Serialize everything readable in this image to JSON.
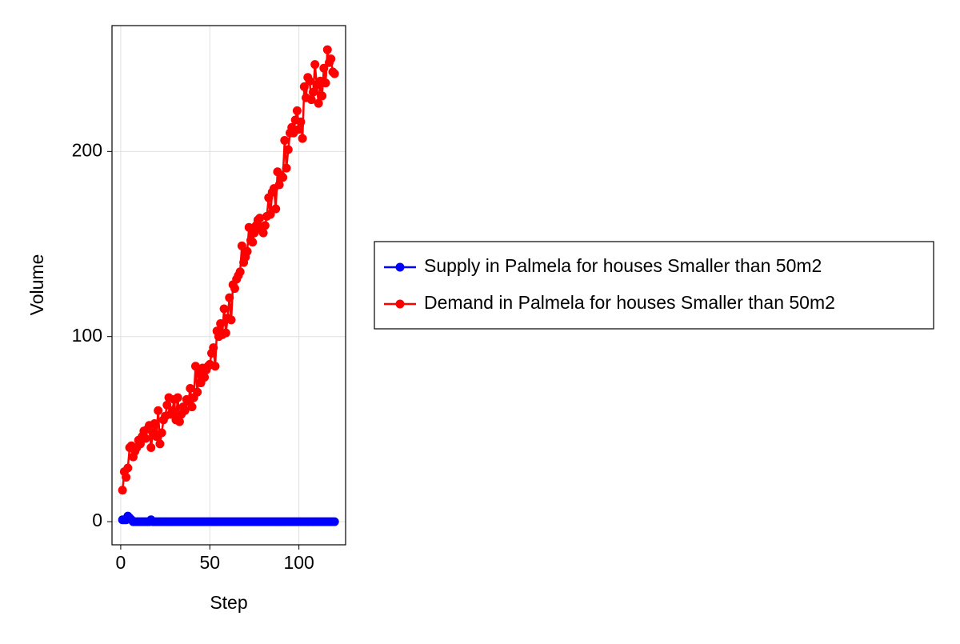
{
  "chart_data": {
    "type": "line",
    "x_label": "Step",
    "y_label": "Volume",
    "x": [
      1,
      2,
      3,
      4,
      5,
      6,
      7,
      8,
      9,
      10,
      11,
      12,
      13,
      14,
      15,
      16,
      17,
      18,
      19,
      20,
      21,
      22,
      23,
      24,
      25,
      26,
      27,
      28,
      29,
      30,
      31,
      32,
      33,
      34,
      35,
      36,
      37,
      38,
      39,
      40,
      41,
      42,
      43,
      44,
      45,
      46,
      47,
      48,
      49,
      50,
      51,
      52,
      53,
      54,
      55,
      56,
      57,
      58,
      59,
      60,
      61,
      62,
      63,
      64,
      65,
      66,
      67,
      68,
      69,
      70,
      71,
      72,
      73,
      74,
      75,
      76,
      77,
      78,
      79,
      80,
      81,
      82,
      83,
      84,
      85,
      86,
      87,
      88,
      89,
      90,
      91,
      92,
      93,
      94,
      95,
      96,
      97,
      98,
      99,
      100,
      101,
      102,
      103,
      104,
      105,
      106,
      107,
      108,
      109,
      110,
      111,
      112,
      113,
      114,
      115,
      116,
      117,
      118,
      119,
      120
    ],
    "series": [
      {
        "name": "Supply in Palmela for houses Smaller than 50m2",
        "color": "#0000ff",
        "values": [
          1,
          1,
          1,
          3,
          2,
          1,
          0,
          0,
          0,
          0,
          0,
          0,
          0,
          0,
          0,
          0,
          1,
          0,
          0,
          0,
          0,
          0,
          0,
          0,
          0,
          0,
          0,
          0,
          0,
          0,
          0,
          0,
          0,
          0,
          0,
          0,
          0,
          0,
          0,
          0,
          0,
          0,
          0,
          0,
          0,
          0,
          0,
          0,
          0,
          0,
          0,
          0,
          0,
          0,
          0,
          0,
          0,
          0,
          0,
          0,
          0,
          0,
          0,
          0,
          0,
          0,
          0,
          0,
          0,
          0,
          0,
          0,
          0,
          0,
          0,
          0,
          0,
          0,
          0,
          0,
          0,
          0,
          0,
          0,
          0,
          0,
          0,
          0,
          0,
          0,
          0,
          0,
          0,
          0,
          0,
          0,
          0,
          0,
          0,
          0,
          0,
          0,
          0,
          0,
          0,
          0,
          0,
          0,
          0,
          0,
          0,
          0,
          0,
          0,
          0,
          0,
          0,
          0,
          0,
          0
        ]
      },
      {
        "name": "Demand in Palmela for houses Smaller than 50m2",
        "color": "#ff0000",
        "values": [
          17,
          27,
          24,
          29,
          40,
          41,
          35,
          38,
          40,
          44,
          42,
          46,
          49,
          45,
          50,
          52,
          40,
          48,
          53,
          46,
          60,
          42,
          48,
          55,
          57,
          63,
          67,
          58,
          60,
          66,
          55,
          67,
          54,
          58,
          62,
          60,
          66,
          65,
          72,
          62,
          67,
          84,
          70,
          80,
          75,
          83,
          78,
          82,
          84,
          85,
          91,
          94,
          84,
          103,
          100,
          107,
          101,
          115,
          102,
          110,
          121,
          109,
          128,
          126,
          131,
          133,
          135,
          149,
          140,
          143,
          146,
          159,
          152,
          151,
          156,
          160,
          163,
          164,
          158,
          156,
          160,
          165,
          175,
          166,
          178,
          180,
          169,
          189,
          182,
          187,
          186,
          206,
          191,
          201,
          210,
          213,
          210,
          217,
          222,
          212,
          216,
          207,
          235,
          229,
          240,
          238,
          228,
          232,
          247,
          236,
          226,
          238,
          230,
          245,
          237,
          255,
          248,
          250,
          243,
          242
        ]
      }
    ],
    "xlim": [
      -4.9,
      126.2
    ],
    "xticks": [
      0,
      50,
      100
    ],
    "ylim": [
      -12.5,
      268
    ],
    "yticks": [
      0,
      100,
      200
    ],
    "grid": true,
    "legend": "right"
  }
}
